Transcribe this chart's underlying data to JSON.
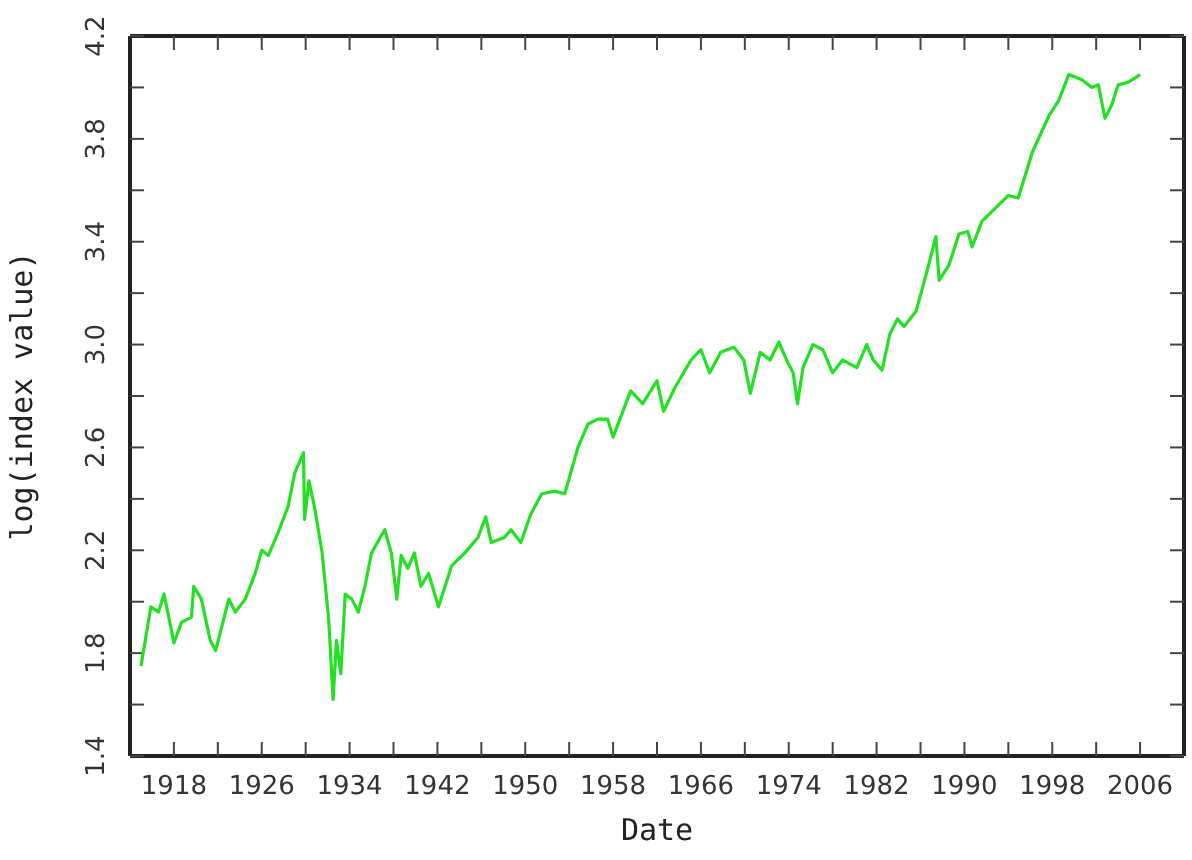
{
  "chart_data": {
    "type": "line",
    "xlabel": "Date",
    "ylabel": "log(index value)",
    "xlim": [
      1914,
      2010
    ],
    "ylim": [
      1.4,
      4.2
    ],
    "xticks": [
      1918,
      {
        "value": 1922,
        "label": null
      },
      1926,
      {
        "value": 1930,
        "label": null
      },
      1934,
      {
        "value": 1938,
        "label": null
      },
      1942,
      {
        "value": 1946,
        "label": null
      },
      1950,
      {
        "value": 1954,
        "label": null
      },
      1958,
      {
        "value": 1962,
        "label": null
      },
      1966,
      {
        "value": 1970,
        "label": null
      },
      1974,
      {
        "value": 1978,
        "label": null
      },
      1982,
      {
        "value": 1986,
        "label": null
      },
      1990,
      {
        "value": 1994,
        "label": null
      },
      1998,
      {
        "value": 2002,
        "label": null
      },
      2006
    ],
    "yticks": [
      {
        "value": 1.4,
        "label": "1.4"
      },
      {
        "value": 1.6,
        "label": null
      },
      {
        "value": 1.8,
        "label": "1.8"
      },
      {
        "value": 2.0,
        "label": null
      },
      {
        "value": 2.2,
        "label": "2.2"
      },
      {
        "value": 2.4,
        "label": null
      },
      {
        "value": 2.6,
        "label": "2.6"
      },
      {
        "value": 2.8,
        "label": null
      },
      {
        "value": 3.0,
        "label": "3.0"
      },
      {
        "value": 3.2,
        "label": null
      },
      {
        "value": 3.4,
        "label": "3.4"
      },
      {
        "value": 3.6,
        "label": null
      },
      {
        "value": 3.8,
        "label": "3.8"
      },
      {
        "value": 4.0,
        "label": null
      },
      {
        "value": 4.2,
        "label": "4.2"
      }
    ],
    "grid": false,
    "marker": "none",
    "line_style": "solid",
    "series": [
      {
        "color": "#22e022",
        "x": [
          1915,
          1915.9,
          1916.6,
          1917.1,
          1918,
          1918.7,
          1919.6,
          1919.8,
          1920.5,
          1921.3,
          1921.8,
          1923,
          1923.6,
          1924.5,
          1925.4,
          1926,
          1926.6,
          1927.5,
          1928.4,
          1929,
          1929.8,
          1929.9,
          1930.3,
          1930.8,
          1931.5,
          1932.1,
          1932.5,
          1932.8,
          1933.2,
          1933.6,
          1934.2,
          1934.8,
          1935.4,
          1936,
          1937.2,
          1937.8,
          1938.3,
          1938.7,
          1939.3,
          1939.9,
          1940.5,
          1941.2,
          1942.1,
          1943.3,
          1944.5,
          1945.7,
          1946.4,
          1946.9,
          1948.1,
          1948.7,
          1949.6,
          1950.5,
          1951.5,
          1952.7,
          1953.6,
          1954.8,
          1955.7,
          1956.6,
          1957.5,
          1958,
          1959.6,
          1960.7,
          1962,
          1962.6,
          1963.6,
          1965.1,
          1966,
          1966.8,
          1967.8,
          1969,
          1969.9,
          1970.5,
          1971.4,
          1972.3,
          1973.1,
          1973.8,
          1974.4,
          1974.8,
          1975.3,
          1976.2,
          1977.1,
          1978,
          1978.9,
          1980.2,
          1981.1,
          1981.7,
          1982.5,
          1983.2,
          1983.9,
          1984.5,
          1985.6,
          1986.5,
          1987.4,
          1987.7,
          1988.6,
          1989.5,
          1990.3,
          1990.7,
          1991.6,
          1992.8,
          1994,
          1994.9,
          1996.2,
          1997.7,
          1998.6,
          1999.5,
          2000.7,
          2001.6,
          2002.2,
          2002.8,
          2003.4,
          2004,
          2004.9,
          2006
        ],
        "values": [
          1.75,
          1.98,
          1.96,
          2.03,
          1.84,
          1.92,
          1.94,
          2.06,
          2.01,
          1.85,
          1.81,
          2.01,
          1.96,
          2.01,
          2.11,
          2.2,
          2.18,
          2.27,
          2.37,
          2.5,
          2.58,
          2.32,
          2.47,
          2.37,
          2.19,
          1.93,
          1.62,
          1.85,
          1.72,
          2.03,
          2.01,
          1.96,
          2.06,
          2.19,
          2.28,
          2.19,
          2.01,
          2.18,
          2.13,
          2.19,
          2.06,
          2.11,
          1.98,
          2.14,
          2.19,
          2.25,
          2.33,
          2.23,
          2.25,
          2.28,
          2.23,
          2.34,
          2.42,
          2.43,
          2.42,
          2.6,
          2.69,
          2.71,
          2.71,
          2.64,
          2.82,
          2.77,
          2.86,
          2.74,
          2.83,
          2.94,
          2.98,
          2.89,
          2.97,
          2.99,
          2.94,
          2.81,
          2.97,
          2.94,
          3.01,
          2.94,
          2.89,
          2.77,
          2.91,
          3.0,
          2.98,
          2.89,
          2.94,
          2.91,
          3.0,
          2.94,
          2.9,
          3.04,
          3.1,
          3.07,
          3.13,
          3.27,
          3.42,
          3.25,
          3.31,
          3.43,
          3.44,
          3.38,
          3.48,
          3.53,
          3.58,
          3.57,
          3.75,
          3.89,
          3.95,
          4.05,
          4.03,
          4.0,
          4.01,
          3.88,
          3.93,
          4.01,
          4.02,
          4.05
        ]
      }
    ]
  }
}
